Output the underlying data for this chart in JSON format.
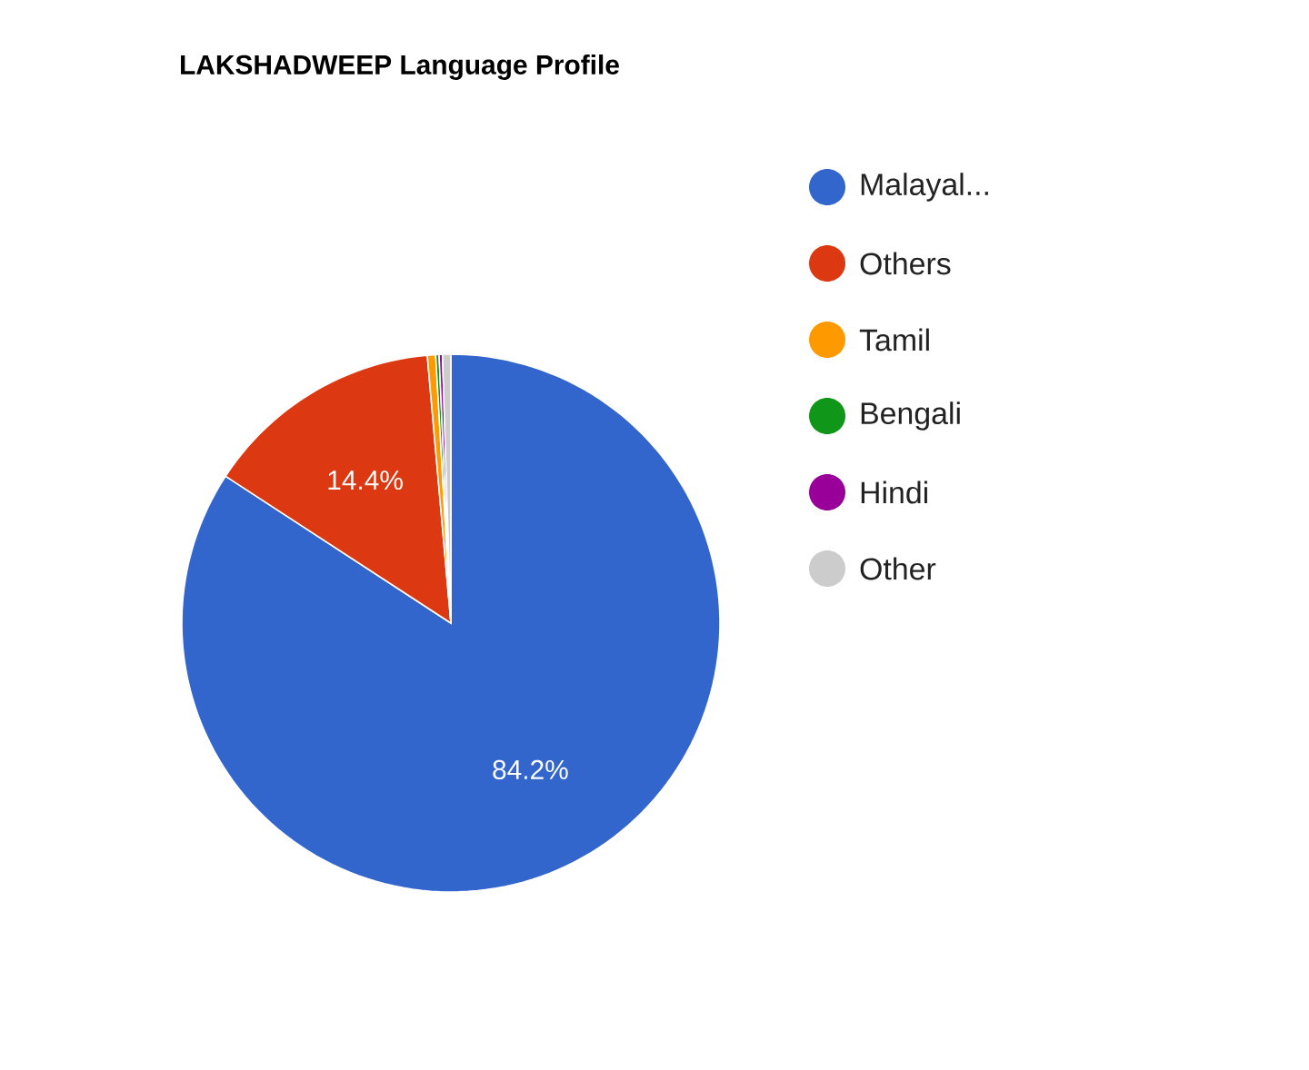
{
  "chart_data": {
    "type": "pie",
    "title": "LAKSHADWEEP Language Profile",
    "categories": [
      "Malayal...",
      "Others",
      "Tamil",
      "Bengali",
      "Hindi",
      "Other"
    ],
    "values": [
      84.2,
      14.4,
      0.5,
      0.2,
      0.2,
      0.5
    ],
    "colors": [
      "#3366cc",
      "#dc3912",
      "#ff9900",
      "#109618",
      "#990099",
      "#cccccc"
    ],
    "value_labels": [
      "84.2%",
      "14.4%",
      null,
      null,
      null,
      null
    ],
    "legend": "right"
  }
}
